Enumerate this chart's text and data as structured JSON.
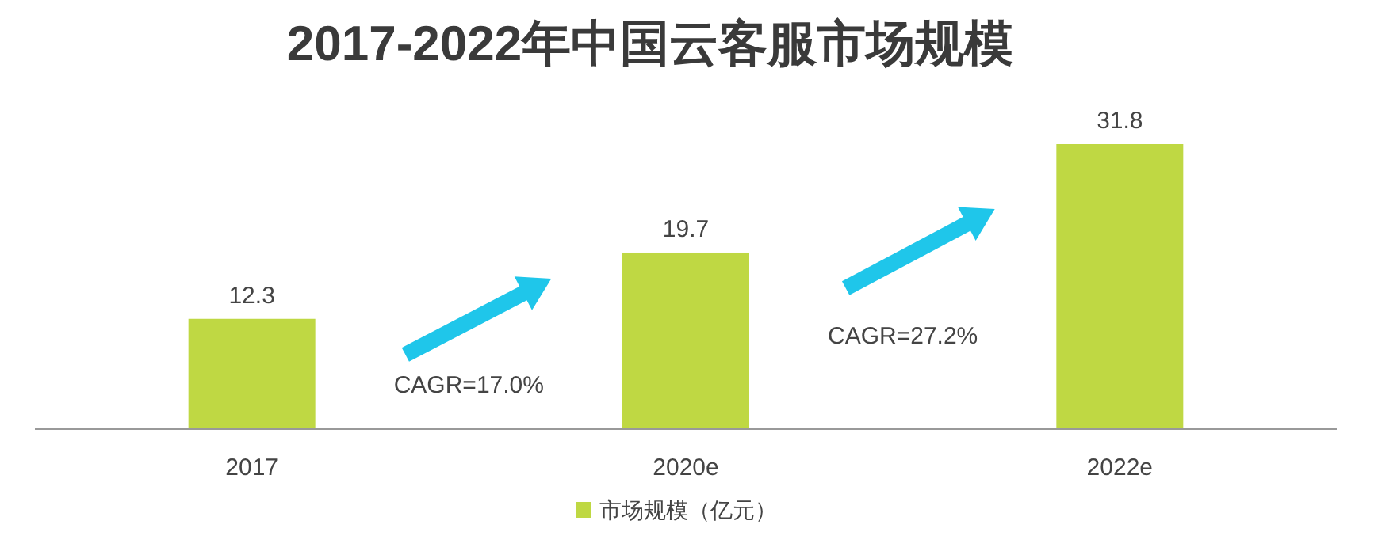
{
  "chart_data": {
    "type": "bar",
    "title": "2017-2022年中国云客服市场规模",
    "categories": [
      "2017",
      "2020e",
      "2022e"
    ],
    "series": [
      {
        "name": "市场规模（亿元）",
        "color": "#bfd843",
        "values": [
          12.3,
          19.7,
          31.8
        ]
      }
    ],
    "data_labels": true,
    "legend": "bottom",
    "annotations": [
      "CAGR=17.0%",
      "CAGR=27.2%"
    ]
  }
}
